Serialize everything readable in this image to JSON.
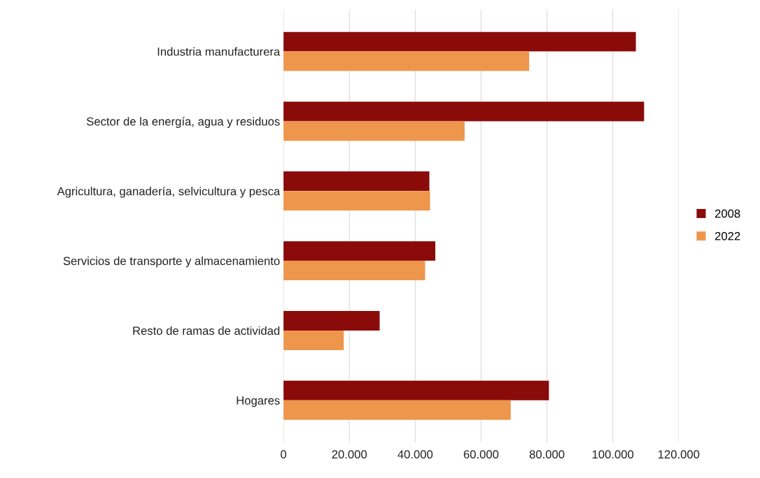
{
  "chart_data": {
    "type": "bar",
    "orientation": "horizontal",
    "categories": [
      "Industria manufacturera",
      "Sector de la energía, agua y residuos",
      "Agricultura, ganadería, selvicultura y pesca",
      "Servicios de transporte y almacenamiento",
      "Resto de ramas de actividad",
      "Hogares"
    ],
    "series": [
      {
        "name": "2008",
        "color": "#8b0a0a",
        "values": [
          107000,
          109500,
          44300,
          46100,
          29200,
          80600
        ]
      },
      {
        "name": "2022",
        "color": "#ee964b",
        "values": [
          74600,
          55000,
          44500,
          43000,
          18300,
          69000
        ]
      }
    ],
    "xlim": [
      0,
      120000
    ],
    "xticks": [
      0,
      {
        "value": 20000,
        "label": "20.000"
      },
      {
        "value": 40000,
        "label": "40.000"
      },
      {
        "value": 60000,
        "label": "60.000"
      },
      {
        "value": 80000,
        "label": "80.000"
      },
      {
        "value": 100000,
        "label": "100.000"
      },
      {
        "value": 120000,
        "label": "120.000"
      }
    ],
    "grid": "x",
    "legend": "right"
  }
}
